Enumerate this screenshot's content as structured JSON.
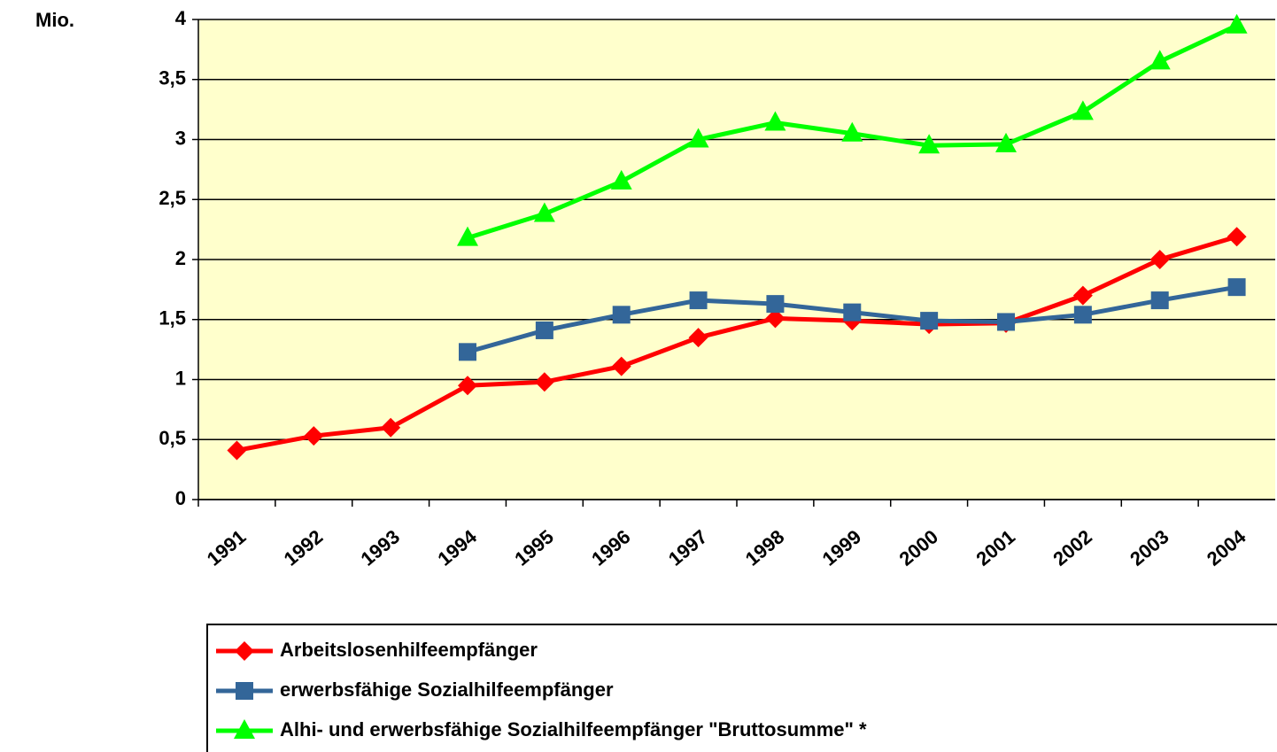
{
  "chart_data": {
    "type": "line",
    "y_label": "Mio.",
    "categories": [
      "1991",
      "1992",
      "1993",
      "1994",
      "1995",
      "1996",
      "1997",
      "1998",
      "1999",
      "2000",
      "2001",
      "2002",
      "2003",
      "2004"
    ],
    "series": [
      {
        "name": "Arbeitslosenhilfeempfänger",
        "color": "#ff0000",
        "marker": "diamond",
        "values": [
          0.41,
          0.53,
          0.6,
          0.95,
          0.98,
          1.11,
          1.35,
          1.51,
          1.49,
          1.46,
          1.47,
          1.7,
          2.0,
          2.19
        ]
      },
      {
        "name": "erwerbsfähige Sozialhilfeempfänger",
        "color": "#336699",
        "marker": "square",
        "values": [
          null,
          null,
          null,
          1.23,
          1.41,
          1.54,
          1.66,
          1.63,
          1.56,
          1.49,
          1.48,
          1.54,
          1.66,
          1.77
        ]
      },
      {
        "name": "Alhi- und erwerbsfähige Sozialhilfeempfänger \"Bruttosumme\" *",
        "color": "#00ff00",
        "marker": "triangle",
        "values": [
          null,
          null,
          null,
          2.18,
          2.38,
          2.65,
          3.0,
          3.14,
          3.05,
          2.95,
          2.96,
          3.23,
          3.65,
          3.95
        ]
      }
    ],
    "ylim": [
      0,
      4
    ],
    "yticks": [
      0,
      {
        "value": 0.5,
        "label": "0,5"
      },
      1,
      {
        "value": 1.5,
        "label": "1,5"
      },
      2,
      {
        "value": 2.5,
        "label": "2,5"
      },
      3,
      {
        "value": 3.5,
        "label": "3,5"
      },
      4
    ],
    "grid": true,
    "plot_background": "#ffffcc",
    "legend": "bottom"
  }
}
